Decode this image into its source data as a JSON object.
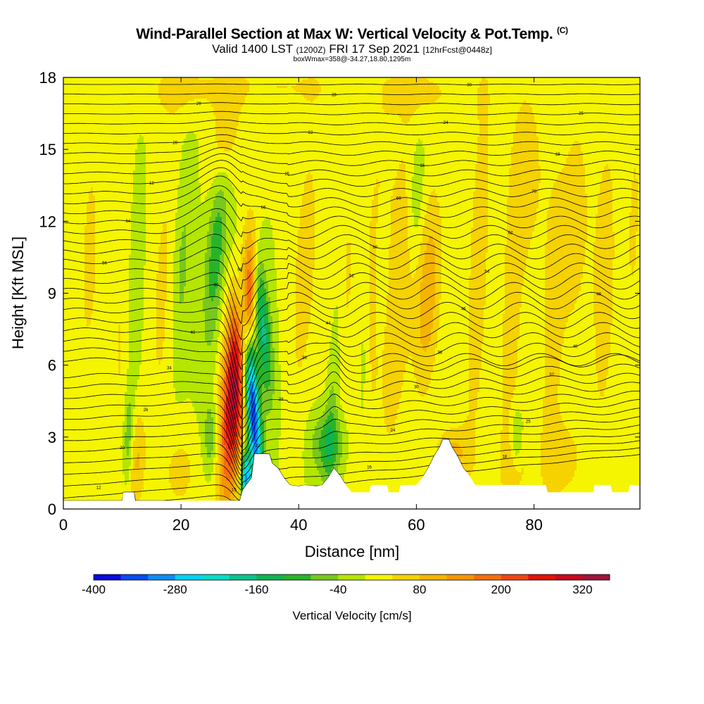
{
  "chart_data": {
    "type": "heatmap",
    "title": "Wind-Parallel Section at Max W: Vertical Velocity & Pot.Temp.",
    "title_tag": "(C)",
    "subtitle_main": "Valid 1400 LST",
    "subtitle_utc": "(1200Z)",
    "subtitle_date": "FRI 17 Sep 2021",
    "subtitle_fcst": "[12hrFcst@0448z]",
    "subtitle2": "boxWmax=358@-34.27,18.80,1295m",
    "xlabel": "Distance [nm]",
    "ylabel": "Height [Kft MSL]",
    "xlim": [
      0,
      98
    ],
    "ylim": [
      0,
      18
    ],
    "x_ticks": [
      "0",
      "20",
      "40",
      "60",
      "80"
    ],
    "y_ticks": [
      "0",
      "3",
      "6",
      "9",
      "12",
      "15",
      "18"
    ],
    "colorbar": {
      "label": "Vertical Velocity [cm/s]",
      "range": [
        -400,
        360
      ],
      "tick_labels": [
        "-400",
        "-280",
        "-160",
        "-40",
        "80",
        "200",
        "320"
      ],
      "colors": [
        "#0a0ae0",
        "#0a4af0",
        "#0a8cf5",
        "#05d2f5",
        "#08dcc8",
        "#0ac38c",
        "#0fb450",
        "#28b428",
        "#78c81e",
        "#b4e600",
        "#f5f500",
        "#f5d200",
        "#f5b400",
        "#f59600",
        "#f56e0a",
        "#f04610",
        "#e1140a",
        "#c80a1e",
        "#a0143c"
      ]
    },
    "terrain_kft": [
      [
        0,
        0.35
      ],
      [
        10,
        0.35
      ],
      [
        10.2,
        0.7
      ],
      [
        12,
        0.7
      ],
      [
        12.2,
        0.35
      ],
      [
        30,
        0.35
      ],
      [
        30.5,
        0.8
      ],
      [
        32,
        1.3
      ],
      [
        32.5,
        2.3
      ],
      [
        35,
        2.3
      ],
      [
        35.5,
        1.9
      ],
      [
        36.5,
        1.7
      ],
      [
        37.5,
        1.3
      ],
      [
        38.5,
        1.0
      ],
      [
        40,
        0.95
      ],
      [
        41,
        1.0
      ],
      [
        43,
        0.95
      ],
      [
        44,
        1.0
      ],
      [
        45,
        1.3
      ],
      [
        46,
        1.7
      ],
      [
        47,
        1.4
      ],
      [
        48,
        1.0
      ],
      [
        49,
        0.7
      ],
      [
        52,
        0.7
      ],
      [
        52.3,
        1.0
      ],
      [
        55,
        1.0
      ],
      [
        55.3,
        0.7
      ],
      [
        57,
        0.7
      ],
      [
        57.3,
        1.0
      ],
      [
        60,
        1.0
      ],
      [
        61,
        1.3
      ],
      [
        62,
        1.7
      ],
      [
        63,
        2.2
      ],
      [
        64,
        2.6
      ],
      [
        64.5,
        2.9
      ],
      [
        65.5,
        2.9
      ],
      [
        66,
        2.6
      ],
      [
        67,
        2.2
      ],
      [
        68,
        1.7
      ],
      [
        69,
        1.4
      ],
      [
        70,
        1.0
      ],
      [
        82,
        1.0
      ],
      [
        82.3,
        0.7
      ],
      [
        90,
        0.7
      ],
      [
        90.3,
        1.0
      ],
      [
        93,
        1.0
      ],
      [
        93.3,
        0.7
      ],
      [
        96,
        0.7
      ],
      [
        96.3,
        1.0
      ],
      [
        98,
        1.0
      ]
    ],
    "updrafts": [
      {
        "x": 29,
        "z": 5.0,
        "sx": 1.4,
        "sz": 3.2,
        "tilt": 0.25,
        "w": 330
      },
      {
        "x": 31.5,
        "z": 8.5,
        "sx": 0.8,
        "sz": 2.2,
        "tilt": 0.15,
        "w": 170
      },
      {
        "x": 27.5,
        "z": 15.5,
        "sx": 1.6,
        "sz": 1.8,
        "tilt": 0.4,
        "w": 90
      },
      {
        "x": 4.5,
        "z": 10.5,
        "sx": 2.0,
        "sz": 6.0,
        "tilt": 0.1,
        "w": 45
      },
      {
        "x": 10,
        "z": 7.0,
        "sx": 1.5,
        "sz": 6.0,
        "tilt": 0.1,
        "w": 45
      },
      {
        "x": 17,
        "z": 9.0,
        "sx": 1.8,
        "sz": 5.0,
        "tilt": 0.15,
        "w": 50
      },
      {
        "x": 12.5,
        "z": 2.0,
        "sx": 1.0,
        "sz": 1.5,
        "tilt": 0.1,
        "w": 80
      },
      {
        "x": 20,
        "z": 1.5,
        "sx": 2.0,
        "sz": 1.2,
        "tilt": 0.1,
        "w": 55
      },
      {
        "x": 41,
        "z": 10.0,
        "sx": 1.6,
        "sz": 4.5,
        "tilt": 0.2,
        "w": 60
      },
      {
        "x": 47,
        "z": 9.5,
        "sx": 1.8,
        "sz": 4.0,
        "tilt": 0.2,
        "w": 60
      },
      {
        "x": 52,
        "z": 8.0,
        "sx": 1.6,
        "sz": 6.0,
        "tilt": 0.3,
        "w": 70
      },
      {
        "x": 57,
        "z": 9.0,
        "sx": 1.8,
        "sz": 5.5,
        "tilt": 0.25,
        "w": 70
      },
      {
        "x": 62,
        "z": 9.0,
        "sx": 1.5,
        "sz": 3.0,
        "tilt": 0.2,
        "w": 110
      },
      {
        "x": 66,
        "z": 2.3,
        "sx": 2.0,
        "sz": 0.8,
        "tilt": 0.1,
        "w": 90
      },
      {
        "x": 70.5,
        "z": 10.0,
        "sx": 1.5,
        "sz": 7.0,
        "tilt": 0.15,
        "w": 60
      },
      {
        "x": 76,
        "z": 7.0,
        "sx": 1.5,
        "sz": 6.0,
        "tilt": 0.1,
        "w": 55
      },
      {
        "x": 79,
        "z": 14.0,
        "sx": 2.0,
        "sz": 3.0,
        "tilt": 0.1,
        "w": 55
      },
      {
        "x": 83,
        "z": 7.5,
        "sx": 1.5,
        "sz": 5.5,
        "tilt": 0.1,
        "w": 55
      },
      {
        "x": 87,
        "z": 12.0,
        "sx": 1.8,
        "sz": 4.0,
        "tilt": 0.1,
        "w": 55
      },
      {
        "x": 92,
        "z": 9.5,
        "sx": 1.8,
        "sz": 6.0,
        "tilt": 0.1,
        "w": 55
      },
      {
        "x": 97,
        "z": 12.0,
        "sx": 1.0,
        "sz": 4.0,
        "tilt": 0.1,
        "w": 45
      },
      {
        "x": 85,
        "z": 2.0,
        "sx": 2.5,
        "sz": 1.2,
        "tilt": 0.1,
        "w": 55
      },
      {
        "x": 77,
        "z": 2.0,
        "sx": 1.5,
        "sz": 1.0,
        "tilt": 0.1,
        "w": 70
      },
      {
        "x": 20,
        "z": 17.5,
        "sx": 5.0,
        "sz": 0.9,
        "tilt": 0.0,
        "w": 45
      },
      {
        "x": 37,
        "z": 17.6,
        "sx": 8.0,
        "sz": 0.7,
        "tilt": 0.0,
        "w": 40
      },
      {
        "x": 62,
        "z": 17.4,
        "sx": 6.0,
        "sz": 0.9,
        "tilt": 0.0,
        "w": 40
      }
    ],
    "downdrafts": [
      {
        "x": 32,
        "z": 4.5,
        "sx": 0.9,
        "sz": 3.0,
        "tilt": -0.35,
        "w": -380
      },
      {
        "x": 34,
        "z": 7.5,
        "sx": 0.9,
        "sz": 2.0,
        "tilt": -0.3,
        "w": -170
      },
      {
        "x": 26,
        "z": 11.0,
        "sx": 1.2,
        "sz": 3.0,
        "tilt": 0.3,
        "w": -110
      },
      {
        "x": 20,
        "z": 10.0,
        "sx": 1.2,
        "sz": 3.0,
        "tilt": 0.2,
        "w": -60
      },
      {
        "x": 12,
        "z": 9.0,
        "sx": 1.0,
        "sz": 3.5,
        "tilt": 0.1,
        "w": -50
      },
      {
        "x": 11,
        "z": 3.0,
        "sx": 0.6,
        "sz": 1.4,
        "tilt": 0.1,
        "w": -90
      },
      {
        "x": 25,
        "z": 3.0,
        "sx": 0.8,
        "sz": 1.0,
        "tilt": 0.0,
        "w": -80
      },
      {
        "x": 45,
        "z": 2.7,
        "sx": 2.0,
        "sz": 1.0,
        "tilt": 0.0,
        "w": -110
      },
      {
        "x": 46,
        "z": 6.0,
        "sx": 0.8,
        "sz": 4.0,
        "tilt": 0.2,
        "w": -70
      },
      {
        "x": 51,
        "z": 6.0,
        "sx": 0.8,
        "sz": 3.0,
        "tilt": 0.1,
        "w": -70
      },
      {
        "x": 60,
        "z": 13.0,
        "sx": 1.0,
        "sz": 2.0,
        "tilt": 0.1,
        "w": -55
      },
      {
        "x": 54,
        "z": 10.0,
        "sx": 0.8,
        "sz": 2.0,
        "tilt": 0.1,
        "w": -55
      },
      {
        "x": 77,
        "z": 2.8,
        "sx": 0.8,
        "sz": 0.9,
        "tilt": 0.0,
        "w": -110
      },
      {
        "x": 31,
        "z": 1.2,
        "sx": 0.6,
        "sz": 0.8,
        "tilt": 0.0,
        "w": -300
      }
    ],
    "isentrope_labels": [
      "12",
      "15",
      "16",
      "18",
      "20",
      "22",
      "24",
      "25",
      "26",
      "28",
      "30",
      "32",
      "34",
      "36",
      "38",
      "40",
      "42",
      "44",
      "46",
      "48",
      "50",
      "52",
      "54",
      "56",
      "58",
      "60",
      "62",
      "64",
      "66",
      "68",
      "70"
    ]
  }
}
